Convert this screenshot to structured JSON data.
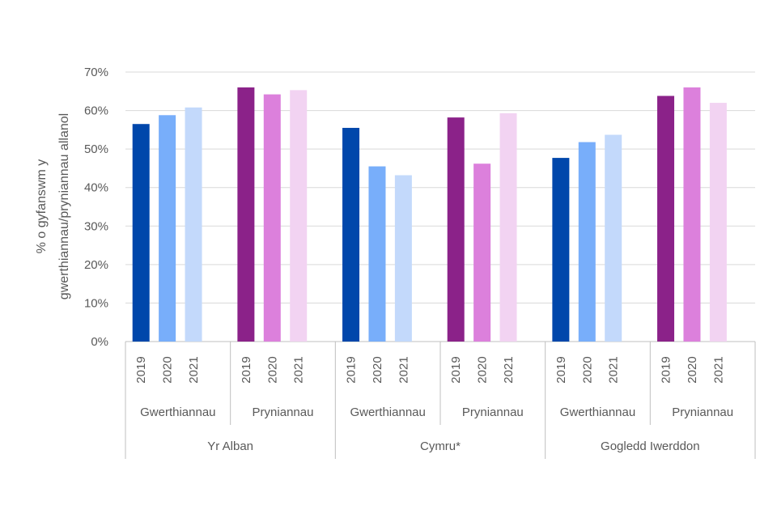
{
  "chart_data": {
    "type": "bar",
    "title": "",
    "ylabel": "% o gyfanswm y gwerthiannau/pryniannau allanol",
    "ylabel_lines": [
      "% o gyfanswm y",
      "gwerthiannau/pryniannau allanol"
    ],
    "ylim": [
      0,
      70
    ],
    "yticks": [
      "0%",
      "10%",
      "20%",
      "30%",
      "40%",
      "50%",
      "60%",
      "70%"
    ],
    "grid": true,
    "regions": [
      {
        "name": "Yr Alban",
        "groups": [
          {
            "name": "Gwerthiannau",
            "kind": "sales",
            "years": [
              "2019",
              "2020",
              "2021"
            ],
            "values": [
              56.5,
              58.8,
              60.8
            ]
          },
          {
            "name": "Pryniannau",
            "kind": "purchases",
            "years": [
              "2019",
              "2020",
              "2021"
            ],
            "values": [
              66.0,
              64.2,
              65.3
            ]
          }
        ]
      },
      {
        "name": "Cymru*",
        "groups": [
          {
            "name": "Gwerthiannau",
            "kind": "sales",
            "years": [
              "2019",
              "2020",
              "2021"
            ],
            "values": [
              55.5,
              45.5,
              43.2
            ]
          },
          {
            "name": "Pryniannau",
            "kind": "purchases",
            "years": [
              "2019",
              "2020",
              "2021"
            ],
            "values": [
              58.2,
              46.2,
              59.3
            ]
          }
        ]
      },
      {
        "name": "Gogledd Iwerddon",
        "groups": [
          {
            "name": "Gwerthiannau",
            "kind": "sales",
            "years": [
              "2019",
              "2020",
              "2021"
            ],
            "values": [
              47.7,
              51.8,
              53.7
            ]
          },
          {
            "name": "Pryniannau",
            "kind": "purchases",
            "years": [
              "2019",
              "2020",
              "2021"
            ],
            "values": [
              63.8,
              66.0,
              62.0
            ]
          }
        ]
      }
    ],
    "colors": {
      "sales": [
        "#0047ab",
        "#78aefa",
        "#c3d9fb"
      ],
      "purchases": [
        "#8b2289",
        "#dc80dc",
        "#f2d3f2"
      ],
      "grid": "#d9d9d9",
      "text": "#595959"
    }
  }
}
